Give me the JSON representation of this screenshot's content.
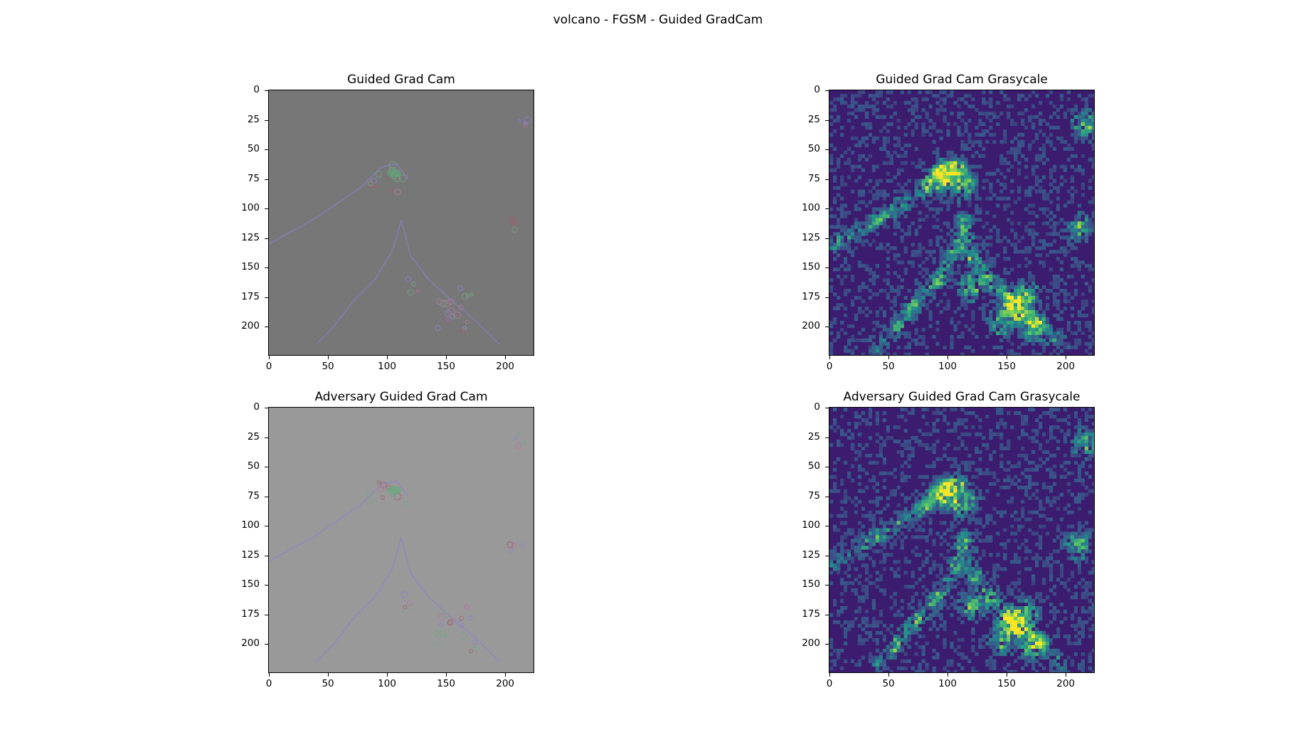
{
  "figure": {
    "suptitle": "volcano - FGSM - Guided GradCam"
  },
  "chart_data": [
    {
      "type": "heatmap",
      "title": "Guided Grad Cam",
      "colormap": "rgb-gradient-overlay",
      "background_color": "#777777",
      "xlim": [
        0,
        224
      ],
      "ylim": [
        224,
        0
      ],
      "xticks": [
        0,
        50,
        100,
        150,
        200
      ],
      "yticks": [
        0,
        25,
        50,
        75,
        100,
        125,
        150,
        175,
        200
      ]
    },
    {
      "type": "heatmap",
      "title": "Guided Grad Cam Grasycale",
      "colormap": "viridis",
      "background_color": "#3b1c6e",
      "xlim": [
        0,
        224
      ],
      "ylim": [
        224,
        0
      ],
      "xticks": [
        0,
        50,
        100,
        150,
        200
      ],
      "yticks": [
        0,
        25,
        50,
        75,
        100,
        125,
        150,
        175,
        200
      ]
    },
    {
      "type": "heatmap",
      "title": "Adversary Guided Grad Cam",
      "colormap": "rgb-gradient-overlay",
      "background_color": "#999999",
      "xlim": [
        0,
        224
      ],
      "ylim": [
        224,
        0
      ],
      "xticks": [
        0,
        50,
        100,
        150,
        200
      ],
      "yticks": [
        0,
        25,
        50,
        75,
        100,
        125,
        150,
        175,
        200
      ]
    },
    {
      "type": "heatmap",
      "title": "Adversary Guided Grad Cam Grasycale",
      "colormap": "viridis",
      "background_color": "#3b1c6e",
      "xlim": [
        0,
        224
      ],
      "ylim": [
        224,
        0
      ],
      "xticks": [
        0,
        50,
        100,
        150,
        200
      ],
      "yticks": [
        0,
        25,
        50,
        75,
        100,
        125,
        150,
        175,
        200
      ]
    }
  ]
}
